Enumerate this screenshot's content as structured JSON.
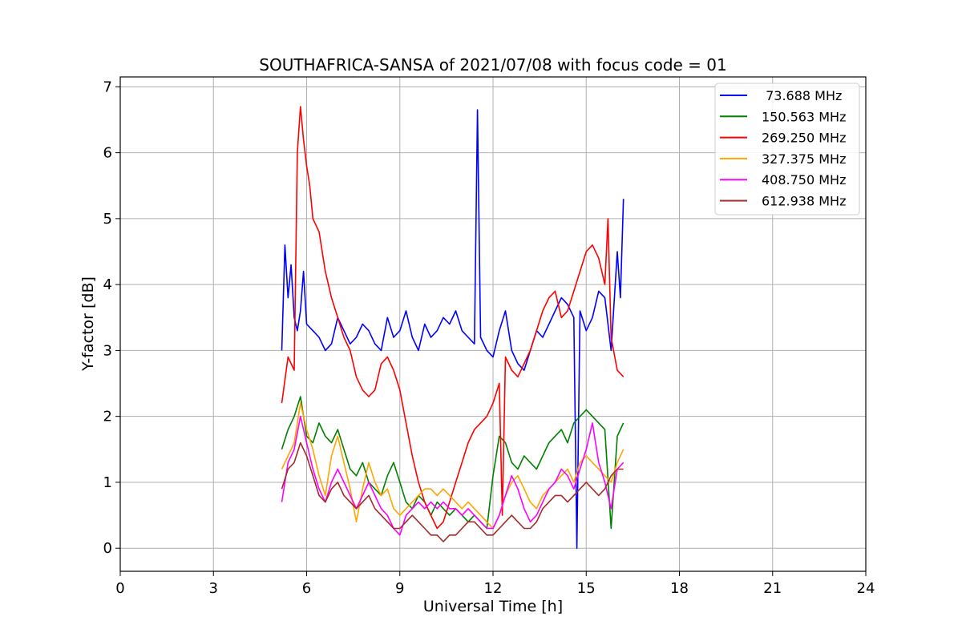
{
  "chart_data": {
    "type": "line",
    "title": "SOUTHAFRICA-SANSA of 2021/07/08 with focus code = 01",
    "xlabel": "Universal Time [h]",
    "ylabel": "Y-factor [dB]",
    "xlim": [
      0,
      24
    ],
    "ylim": [
      -0.35,
      7.15
    ],
    "xticks": [
      0,
      3,
      6,
      9,
      12,
      15,
      18,
      21,
      24
    ],
    "yticks": [
      0,
      1,
      2,
      3,
      4,
      5,
      6,
      7
    ],
    "xtick_labels": [
      "0",
      "3",
      "6",
      "9",
      "12",
      "15",
      "18",
      "21",
      "24"
    ],
    "ytick_labels": [
      "0",
      "1",
      "2",
      "3",
      "4",
      "5",
      "6",
      "7"
    ],
    "grid": true,
    "legend_position": "top-right",
    "series": [
      {
        "name": " 73.688 MHz",
        "color": "#0000ff",
        "x": [
          5.2,
          5.3,
          5.4,
          5.5,
          5.6,
          5.7,
          5.8,
          5.9,
          6.0,
          6.2,
          6.4,
          6.6,
          6.8,
          7.0,
          7.2,
          7.4,
          7.6,
          7.8,
          8.0,
          8.2,
          8.4,
          8.6,
          8.8,
          9.0,
          9.2,
          9.4,
          9.6,
          9.8,
          10.0,
          10.2,
          10.4,
          10.6,
          10.8,
          11.0,
          11.2,
          11.4,
          11.5,
          11.6,
          11.8,
          12.0,
          12.2,
          12.4,
          12.6,
          12.8,
          13.0,
          13.2,
          13.4,
          13.6,
          13.8,
          14.0,
          14.2,
          14.4,
          14.6,
          14.7,
          14.8,
          15.0,
          15.2,
          15.4,
          15.6,
          15.8,
          16.0,
          16.1,
          16.2
        ],
        "y": [
          3.0,
          4.6,
          3.8,
          4.3,
          3.5,
          3.3,
          3.6,
          4.2,
          3.4,
          3.3,
          3.2,
          3.0,
          3.1,
          3.5,
          3.3,
          3.1,
          3.2,
          3.4,
          3.3,
          3.1,
          3.0,
          3.5,
          3.2,
          3.3,
          3.6,
          3.2,
          3.0,
          3.4,
          3.2,
          3.3,
          3.5,
          3.4,
          3.6,
          3.3,
          3.2,
          3.1,
          6.65,
          3.2,
          3.0,
          2.9,
          3.3,
          3.6,
          3.0,
          2.8,
          2.7,
          3.0,
          3.3,
          3.2,
          3.4,
          3.6,
          3.8,
          3.7,
          3.5,
          0.0,
          3.6,
          3.3,
          3.5,
          3.9,
          3.8,
          3.0,
          4.5,
          3.8,
          5.3
        ]
      },
      {
        "name": "150.563 MHz",
        "color": "#008000",
        "x": [
          5.2,
          5.4,
          5.6,
          5.8,
          6.0,
          6.2,
          6.4,
          6.6,
          6.8,
          7.0,
          7.2,
          7.4,
          7.6,
          7.8,
          8.0,
          8.2,
          8.4,
          8.6,
          8.8,
          9.0,
          9.2,
          9.4,
          9.6,
          9.8,
          10.0,
          10.2,
          10.4,
          10.6,
          10.8,
          11.0,
          11.2,
          11.4,
          11.6,
          11.8,
          12.0,
          12.2,
          12.4,
          12.6,
          12.8,
          13.0,
          13.2,
          13.4,
          13.6,
          13.8,
          14.0,
          14.2,
          14.4,
          14.6,
          14.8,
          15.0,
          15.2,
          15.4,
          15.6,
          15.8,
          16.0,
          16.2
        ],
        "y": [
          1.5,
          1.8,
          2.0,
          2.3,
          1.7,
          1.6,
          1.9,
          1.7,
          1.6,
          1.8,
          1.5,
          1.2,
          1.1,
          1.3,
          1.0,
          0.9,
          0.8,
          1.1,
          1.3,
          1.0,
          0.7,
          0.6,
          0.8,
          0.7,
          0.5,
          0.7,
          0.6,
          0.5,
          0.6,
          0.5,
          0.4,
          0.5,
          0.4,
          0.3,
          1.1,
          1.7,
          1.6,
          1.3,
          1.2,
          1.4,
          1.3,
          1.2,
          1.4,
          1.6,
          1.7,
          1.8,
          1.6,
          1.9,
          2.0,
          2.1,
          2.0,
          1.9,
          1.8,
          0.3,
          1.7,
          1.9
        ]
      },
      {
        "name": "269.250 MHz",
        "color": "#ff0000",
        "x": [
          5.2,
          5.4,
          5.6,
          5.7,
          5.8,
          5.9,
          6.0,
          6.1,
          6.2,
          6.4,
          6.6,
          6.8,
          7.0,
          7.2,
          7.4,
          7.6,
          7.8,
          8.0,
          8.2,
          8.4,
          8.6,
          8.8,
          9.0,
          9.2,
          9.4,
          9.6,
          9.8,
          10.0,
          10.2,
          10.4,
          10.6,
          10.8,
          11.0,
          11.2,
          11.4,
          11.6,
          11.8,
          12.0,
          12.2,
          12.3,
          12.4,
          12.6,
          12.8,
          13.0,
          13.2,
          13.4,
          13.6,
          13.8,
          14.0,
          14.2,
          14.4,
          14.6,
          14.8,
          15.0,
          15.2,
          15.4,
          15.6,
          15.7,
          15.8,
          16.0,
          16.2
        ],
        "y": [
          2.2,
          2.9,
          2.7,
          6.0,
          6.7,
          6.2,
          5.8,
          5.5,
          5.0,
          4.8,
          4.2,
          3.8,
          3.5,
          3.2,
          3.0,
          2.6,
          2.4,
          2.3,
          2.4,
          2.8,
          2.9,
          2.7,
          2.4,
          1.9,
          1.4,
          1.0,
          0.7,
          0.5,
          0.3,
          0.4,
          0.7,
          1.0,
          1.3,
          1.6,
          1.8,
          1.9,
          2.0,
          2.2,
          2.5,
          0.5,
          2.9,
          2.7,
          2.6,
          2.8,
          3.0,
          3.3,
          3.6,
          3.8,
          3.9,
          3.5,
          3.6,
          3.9,
          4.2,
          4.5,
          4.6,
          4.4,
          4.0,
          5.0,
          3.2,
          2.7,
          2.6
        ]
      },
      {
        "name": "327.375 MHz",
        "color": "#ffa500",
        "x": [
          5.2,
          5.4,
          5.6,
          5.8,
          6.0,
          6.2,
          6.4,
          6.6,
          6.8,
          7.0,
          7.2,
          7.4,
          7.6,
          7.8,
          8.0,
          8.2,
          8.4,
          8.6,
          8.8,
          9.0,
          9.2,
          9.4,
          9.6,
          9.8,
          10.0,
          10.2,
          10.4,
          10.6,
          10.8,
          11.0,
          11.2,
          11.4,
          11.6,
          11.8,
          12.0,
          12.2,
          12.4,
          12.6,
          12.8,
          13.0,
          13.2,
          13.4,
          13.6,
          13.8,
          14.0,
          14.2,
          14.4,
          14.6,
          14.8,
          15.0,
          15.2,
          15.4,
          15.6,
          15.8,
          16.0,
          16.2
        ],
        "y": [
          1.2,
          1.4,
          1.6,
          2.2,
          1.8,
          1.5,
          1.1,
          0.8,
          1.4,
          1.7,
          1.3,
          0.9,
          0.4,
          0.9,
          1.3,
          1.0,
          0.8,
          0.9,
          0.6,
          0.5,
          0.6,
          0.7,
          0.8,
          0.9,
          0.9,
          0.8,
          0.9,
          0.8,
          0.7,
          0.6,
          0.7,
          0.6,
          0.5,
          0.4,
          0.3,
          0.5,
          0.8,
          1.0,
          1.1,
          0.9,
          0.7,
          0.6,
          0.8,
          0.9,
          1.0,
          1.1,
          1.2,
          1.0,
          1.3,
          1.4,
          1.3,
          1.2,
          1.1,
          1.0,
          1.3,
          1.5
        ]
      },
      {
        "name": "408.750 MHz",
        "color": "#ff00ff",
        "x": [
          5.2,
          5.4,
          5.6,
          5.8,
          6.0,
          6.2,
          6.4,
          6.6,
          6.8,
          7.0,
          7.2,
          7.4,
          7.6,
          7.8,
          8.0,
          8.2,
          8.4,
          8.6,
          8.8,
          9.0,
          9.2,
          9.4,
          9.6,
          9.8,
          10.0,
          10.2,
          10.4,
          10.6,
          10.8,
          11.0,
          11.2,
          11.4,
          11.6,
          11.8,
          12.0,
          12.2,
          12.4,
          12.6,
          12.8,
          13.0,
          13.2,
          13.4,
          13.6,
          13.8,
          14.0,
          14.2,
          14.4,
          14.6,
          14.8,
          15.0,
          15.2,
          15.4,
          15.6,
          15.8,
          16.0,
          16.2
        ],
        "y": [
          0.7,
          1.3,
          1.5,
          2.0,
          1.6,
          1.2,
          0.9,
          0.7,
          1.0,
          1.2,
          1.0,
          0.8,
          0.6,
          0.8,
          1.0,
          0.8,
          0.6,
          0.5,
          0.3,
          0.2,
          0.5,
          0.6,
          0.7,
          0.6,
          0.7,
          0.6,
          0.7,
          0.6,
          0.6,
          0.5,
          0.6,
          0.5,
          0.4,
          0.3,
          0.3,
          0.5,
          0.8,
          1.1,
          0.9,
          0.6,
          0.4,
          0.5,
          0.7,
          0.9,
          1.0,
          1.2,
          1.1,
          0.9,
          1.2,
          1.5,
          1.9,
          1.3,
          1.0,
          0.6,
          1.2,
          1.3
        ]
      },
      {
        "name": "612.938 MHz",
        "color": "#a52a2a",
        "x": [
          5.2,
          5.4,
          5.6,
          5.8,
          6.0,
          6.2,
          6.4,
          6.6,
          6.8,
          7.0,
          7.2,
          7.4,
          7.6,
          7.8,
          8.0,
          8.2,
          8.4,
          8.6,
          8.8,
          9.0,
          9.2,
          9.4,
          9.6,
          9.8,
          10.0,
          10.2,
          10.4,
          10.6,
          10.8,
          11.0,
          11.2,
          11.4,
          11.6,
          11.8,
          12.0,
          12.2,
          12.4,
          12.6,
          12.8,
          13.0,
          13.2,
          13.4,
          13.6,
          13.8,
          14.0,
          14.2,
          14.4,
          14.6,
          14.8,
          15.0,
          15.2,
          15.4,
          15.6,
          15.8,
          16.0,
          16.2
        ],
        "y": [
          0.9,
          1.2,
          1.3,
          1.6,
          1.4,
          1.1,
          0.8,
          0.7,
          0.9,
          1.0,
          0.8,
          0.7,
          0.6,
          0.7,
          0.8,
          0.6,
          0.5,
          0.4,
          0.3,
          0.3,
          0.4,
          0.5,
          0.4,
          0.3,
          0.2,
          0.2,
          0.1,
          0.2,
          0.2,
          0.3,
          0.4,
          0.4,
          0.3,
          0.2,
          0.2,
          0.3,
          0.4,
          0.5,
          0.4,
          0.3,
          0.3,
          0.4,
          0.6,
          0.7,
          0.8,
          0.8,
          0.7,
          0.8,
          0.9,
          1.0,
          0.9,
          0.8,
          0.9,
          1.1,
          1.2,
          1.2
        ]
      }
    ]
  }
}
